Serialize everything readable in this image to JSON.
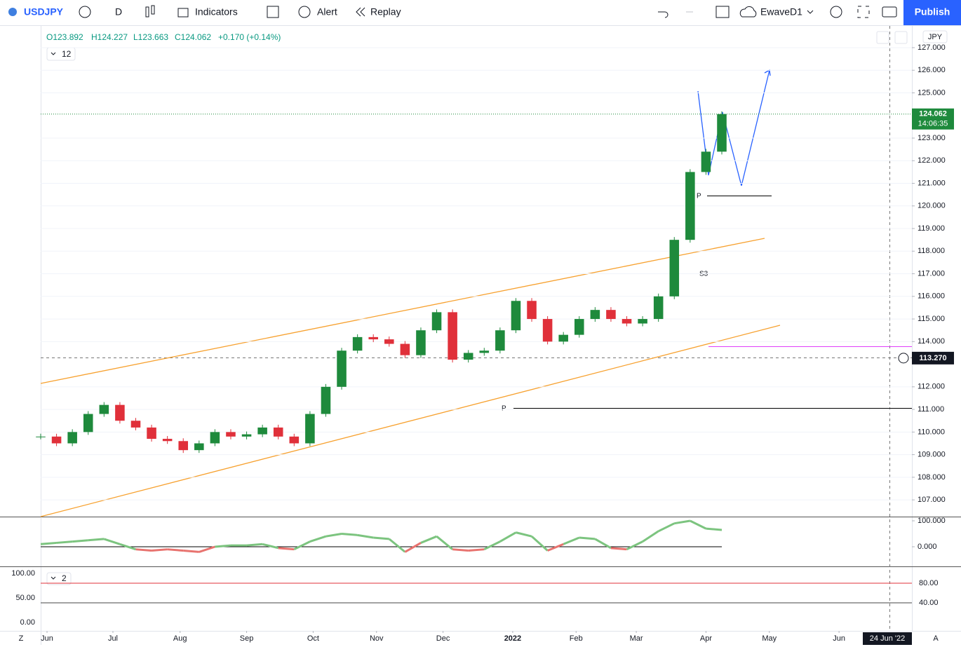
{
  "toolbar": {
    "symbol": "USDJPY",
    "interval": "D",
    "indicators": "Indicators",
    "alert": "Alert",
    "replay": "Replay",
    "layout": "EwaveD1",
    "publish": "Publish"
  },
  "legend": {
    "open": "O123.892",
    "high": "H124.227",
    "low": "L123.663",
    "close": "C124.062",
    "change": "+0.170 (+0.14%)",
    "indicator_count": "12"
  },
  "chart_data": [
    {
      "type": "candlestick",
      "up_color": "#1e8a3c",
      "down_color": "#e0303a",
      "x": [
        0,
        5,
        10,
        15,
        20,
        25,
        30,
        35,
        40,
        45,
        50,
        55,
        60,
        65,
        70,
        75,
        80,
        85,
        90,
        95,
        100,
        105,
        110,
        115,
        120,
        125,
        130,
        135,
        140,
        145,
        150,
        155,
        160,
        165,
        170,
        175,
        180,
        185,
        190,
        195,
        200,
        205,
        210,
        215
      ],
      "values": [
        109.8,
        109.5,
        110.0,
        110.8,
        111.2,
        110.5,
        110.2,
        109.7,
        109.6,
        109.2,
        109.5,
        110.0,
        109.8,
        109.9,
        110.2,
        109.8,
        109.5,
        110.8,
        112.0,
        113.6,
        114.2,
        114.1,
        113.9,
        113.4,
        114.5,
        115.3,
        113.2,
        113.5,
        113.6,
        114.5,
        115.8,
        115.0,
        114.0,
        114.3,
        115.0,
        115.4,
        115.0,
        114.8,
        115.0,
        116.0,
        118.5,
        121.5,
        122.4,
        124.062
      ],
      "xlim": [
        0,
        275
      ],
      "ylim": [
        106.26,
        127.96
      ],
      "xticks": [
        {
          "value": 2,
          "label": "Jun"
        },
        {
          "value": 22.8,
          "label": "Jul"
        },
        {
          "value": 44,
          "label": "Aug"
        },
        {
          "value": 65,
          "label": "Sep"
        },
        {
          "value": 86,
          "label": "Oct"
        },
        {
          "value": 106,
          "label": "Nov"
        },
        {
          "value": 127,
          "label": "Dec"
        },
        {
          "value": 149,
          "label": "2022"
        },
        {
          "value": 169,
          "label": "Feb"
        },
        {
          "value": 188,
          "label": "Mar"
        },
        {
          "value": 210,
          "label": "Apr"
        },
        {
          "value": 230,
          "label": "May"
        },
        {
          "value": 252,
          "label": "Jun"
        }
      ],
      "yticks": [
        {
          "value": 127,
          "label": "127.000"
        },
        {
          "value": 126,
          "label": "126.000"
        },
        {
          "value": 125,
          "label": "125.000"
        },
        {
          "value": 123,
          "label": "123.000"
        },
        {
          "value": 122,
          "label": "122.000"
        },
        {
          "value": 121,
          "label": "121.000"
        },
        {
          "value": 120,
          "label": "120.000"
        },
        {
          "value": 119,
          "label": "119.000"
        },
        {
          "value": 118,
          "label": "118.000"
        },
        {
          "value": 117,
          "label": "117.000"
        },
        {
          "value": 116,
          "label": "116.000"
        },
        {
          "value": 115,
          "label": "115.000"
        },
        {
          "value": 114,
          "label": "114.000"
        },
        {
          "value": 112,
          "label": "112.000"
        },
        {
          "value": 111,
          "label": "111.000"
        },
        {
          "value": 110,
          "label": "110.000"
        },
        {
          "value": 109,
          "label": "109.000"
        },
        {
          "value": 108,
          "label": "108.000"
        },
        {
          "value": 107,
          "label": "107.000"
        }
      ],
      "currency": "JPY",
      "last_price": {
        "value": 124.062,
        "label": "124.062"
      },
      "countdown": "14:06:35",
      "crosshair_price": {
        "value": 113.27,
        "label": "113.270"
      },
      "crosshair_date": "24 Jun '22",
      "annotations": [
        "P",
        "P",
        "S3"
      ]
    },
    {
      "type": "line",
      "up_color": "#7cc47f",
      "down_color": "#e8736f",
      "x": [
        0,
        5,
        10,
        15,
        20,
        25,
        30,
        35,
        40,
        45,
        50,
        55,
        60,
        65,
        70,
        75,
        80,
        85,
        90,
        95,
        100,
        105,
        110,
        115,
        120,
        125,
        130,
        135,
        140,
        145,
        150,
        155,
        160,
        165,
        170,
        175,
        180,
        185,
        190,
        195,
        200,
        205,
        210,
        215
      ],
      "values": [
        10,
        15,
        20,
        25,
        30,
        10,
        -10,
        -15,
        -10,
        -15,
        -20,
        0,
        5,
        5,
        10,
        -5,
        -10,
        20,
        40,
        50,
        45,
        35,
        30,
        -20,
        15,
        40,
        -10,
        -15,
        -10,
        20,
        55,
        40,
        -15,
        10,
        35,
        30,
        -5,
        -10,
        20,
        60,
        90,
        100,
        70,
        65
      ],
      "xlim": [
        0,
        275
      ],
      "ylim": [
        -75.7,
        116.2
      ],
      "yticks": [
        {
          "value": 100,
          "label": "100.000"
        },
        {
          "value": 0,
          "label": "0.000"
        }
      ]
    },
    {
      "type": "levels",
      "indicator_count": "2",
      "ylim": [
        -17.1,
        114.3
      ],
      "yticks": [
        {
          "value": 100,
          "label": "100.00"
        },
        {
          "value": 50,
          "label": "50.00"
        },
        {
          "value": 0,
          "label": "0.00"
        }
      ],
      "y2ticks": [
        {
          "value": 80,
          "label": "80.00"
        },
        {
          "value": 40,
          "label": "40.00"
        }
      ]
    }
  ],
  "footer": {
    "left": "Z",
    "right": "A"
  }
}
